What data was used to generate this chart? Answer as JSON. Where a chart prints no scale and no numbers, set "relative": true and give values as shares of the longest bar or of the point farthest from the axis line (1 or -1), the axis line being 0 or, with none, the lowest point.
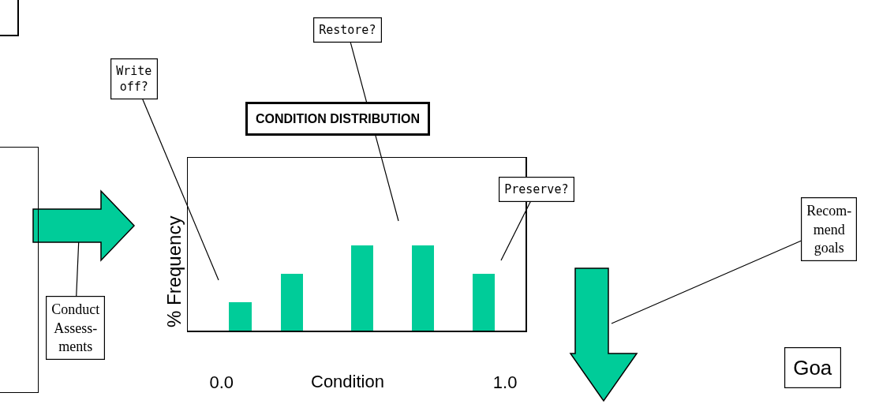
{
  "chart_data": {
    "type": "bar",
    "title": "CONDITION DISTRIBUTION",
    "xlabel": "Condition",
    "ylabel": "% Frequency",
    "relative": true,
    "x": [
      0.066,
      0.247,
      0.496,
      0.709,
      0.925
    ],
    "values": [
      0.333,
      0.667,
      1,
      1,
      0.667
    ],
    "color": "#00cc99",
    "xlim": [
      -0.119,
      1.072
    ],
    "xticks": [
      {
        "value": 0,
        "label": "0.0"
      },
      {
        "value": 1,
        "label": "1.0"
      }
    ],
    "grid": false,
    "legend": false,
    "annotations": [
      "Write\noff?",
      "Restore?",
      "Preserve?",
      "Conduct\nAssess-\nments",
      "Recom-\nmend\ngoals",
      "Goa"
    ]
  }
}
